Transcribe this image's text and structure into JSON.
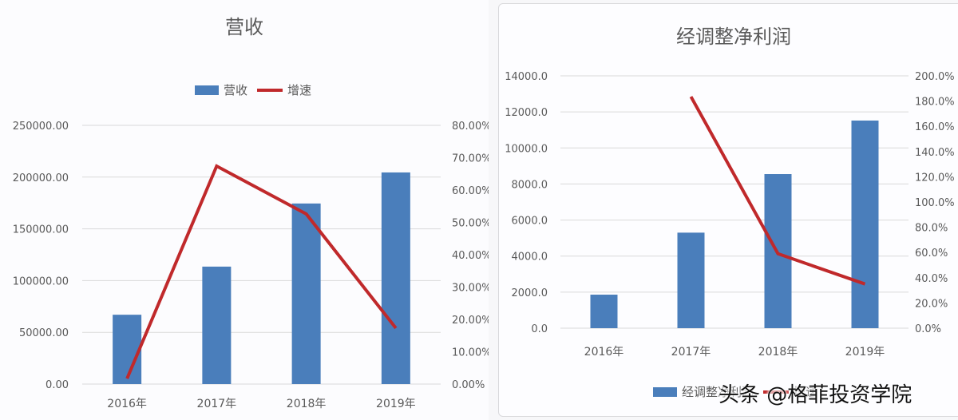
{
  "chart_data": [
    {
      "type": "bar+line",
      "title": "营收",
      "categories": [
        "2016年",
        "2017年",
        "2018年",
        "2019年"
      ],
      "series": [
        {
          "name": "营收",
          "type": "bar",
          "axis": "left",
          "color": "#4a7ebb",
          "values": [
            67000,
            113500,
            174500,
            204500
          ]
        },
        {
          "name": "增速",
          "type": "line",
          "axis": "right",
          "color": "#c0292b",
          "values": [
            0.017,
            0.674,
            0.526,
            0.173
          ]
        }
      ],
      "left_axis": {
        "ylim": [
          0,
          250000
        ],
        "ticks": [
          "0.00",
          "50000.00",
          "100000.00",
          "150000.00",
          "200000.00",
          "250000.00"
        ]
      },
      "right_axis": {
        "ylim": [
          0,
          0.8
        ],
        "ticks": [
          "0.00%",
          "10.00%",
          "20.00%",
          "30.00%",
          "40.00%",
          "50.00%",
          "60.00%",
          "70.00%",
          "80.00%"
        ]
      },
      "legend": {
        "position": "top",
        "entries": [
          "营收",
          "增速"
        ]
      },
      "grid": true,
      "xlabel": "",
      "ylabel": ""
    },
    {
      "type": "bar+line",
      "title": "经调整净利润",
      "categories": [
        "2016年",
        "2017年",
        "2018年",
        "2019年"
      ],
      "series": [
        {
          "name": "经调整净利润",
          "type": "bar",
          "axis": "left",
          "color": "#4a7ebb",
          "values": [
            1860,
            5300,
            8550,
            11520
          ]
        },
        {
          "name": "增速",
          "type": "line",
          "axis": "right",
          "color": "#c0292b",
          "values": [
            null,
            1.835,
            0.59,
            0.35
          ]
        }
      ],
      "left_axis": {
        "ylim": [
          0,
          14000
        ],
        "ticks": [
          "0.0",
          "2000.0",
          "4000.0",
          "6000.0",
          "8000.0",
          "10000.0",
          "12000.0",
          "14000.0"
        ]
      },
      "right_axis": {
        "ylim": [
          0,
          2.0
        ],
        "ticks": [
          "0.0%",
          "20.0%",
          "40.0%",
          "60.0%",
          "80.0%",
          "100.0%",
          "120.0%",
          "140.0%",
          "160.0%",
          "180.0%",
          "200.0%"
        ]
      },
      "legend": {
        "position": "bottom",
        "entries": [
          "经调整净利润",
          "增速"
        ]
      },
      "grid": true,
      "xlabel": "",
      "ylabel": ""
    }
  ],
  "left_chart": {
    "title": "营收",
    "legend": {
      "bar_label": "营收",
      "line_label": "增速"
    }
  },
  "right_chart": {
    "title": "经调整净利润",
    "legend": {
      "bar_label": "经调整净利润",
      "line_label": "增速"
    }
  },
  "watermark": "头条 @格菲投资学院"
}
